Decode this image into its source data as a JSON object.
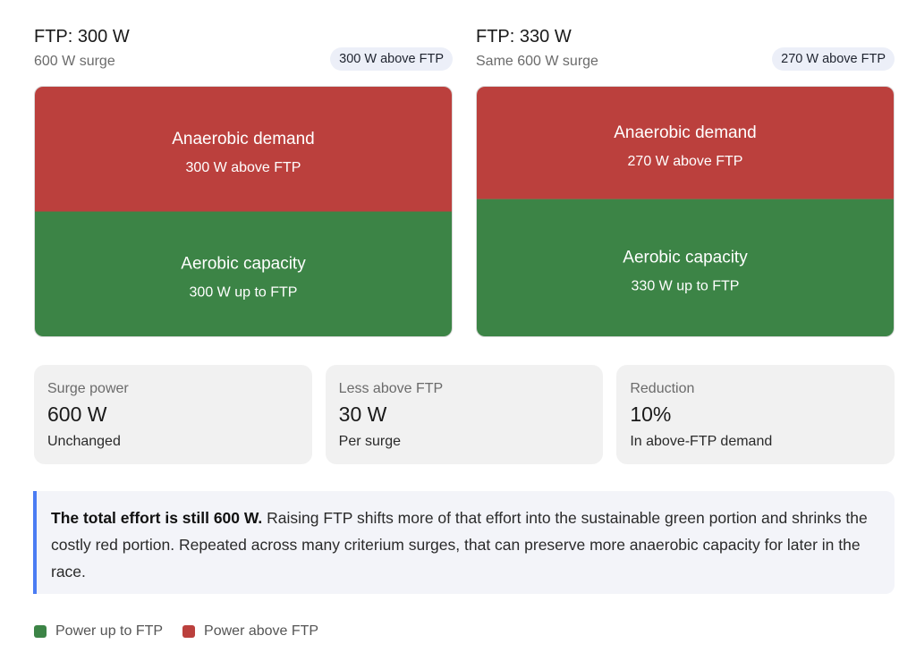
{
  "colors": {
    "above": "#bb403d",
    "up_to": "#3c8446"
  },
  "chart_data": [
    {
      "type": "bar",
      "stacked": true,
      "title": "FTP: 300 W",
      "subtitle": "600 W surge",
      "badge": "300 W above FTP",
      "total": 600,
      "segments": [
        {
          "key": "above",
          "title": "Anaerobic demand",
          "label": "300 W above FTP",
          "value": 300
        },
        {
          "key": "up_to",
          "title": "Aerobic capacity",
          "label": "300 W up to FTP",
          "value": 300
        }
      ]
    },
    {
      "type": "bar",
      "stacked": true,
      "title": "FTP: 330 W",
      "subtitle": "Same 600 W surge",
      "badge": "270 W above FTP",
      "total": 600,
      "segments": [
        {
          "key": "above",
          "title": "Anaerobic demand",
          "label": "270 W above FTP",
          "value": 270
        },
        {
          "key": "up_to",
          "title": "Aerobic capacity",
          "label": "330 W up to FTP",
          "value": 330
        }
      ]
    }
  ],
  "stats": [
    {
      "label": "Surge power",
      "value": "600 W",
      "note": "Unchanged"
    },
    {
      "label": "Less above FTP",
      "value": "30 W",
      "note": "Per surge"
    },
    {
      "label": "Reduction",
      "value": "10%",
      "note": "In above-FTP demand"
    }
  ],
  "callout": {
    "bold": "The total effort is still 600 W.",
    "text": " Raising FTP shifts more of that effort into the sustainable green portion and shrinks the costly red portion. Repeated across many criterium surges, that can preserve more anaerobic capacity for later in the race."
  },
  "legend": [
    {
      "label": "Power up to FTP",
      "key": "up_to"
    },
    {
      "label": "Power above FTP",
      "key": "above"
    }
  ]
}
